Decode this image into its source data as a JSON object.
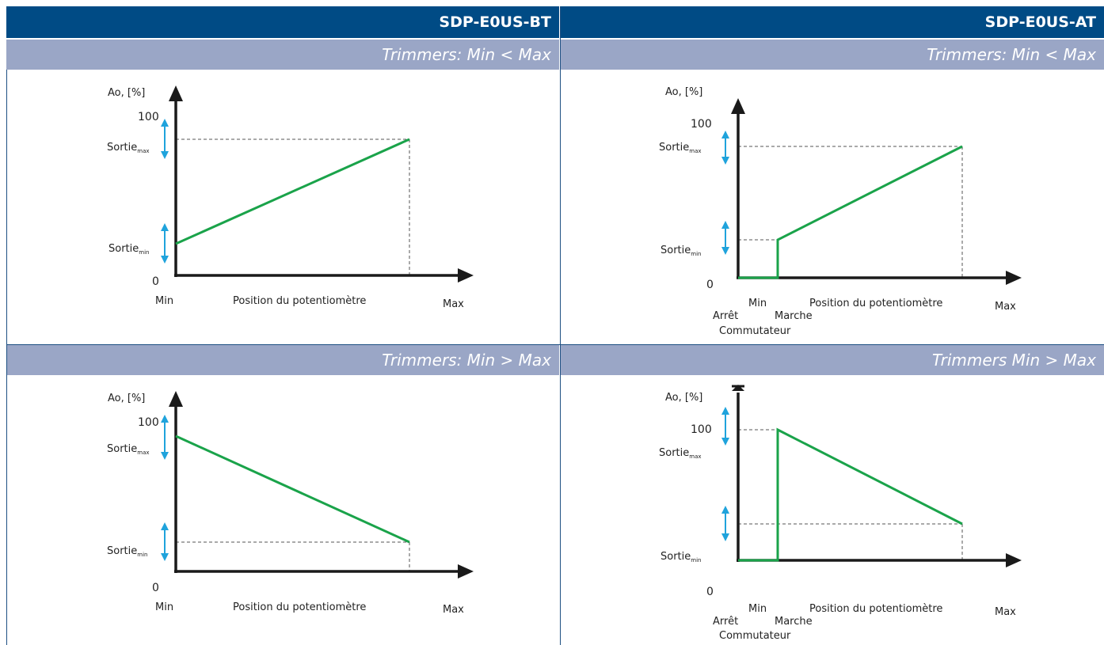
{
  "columns": [
    {
      "title": "SDP-E0US-BT"
    },
    {
      "title": "SDP-E0US-AT"
    }
  ],
  "rows": [
    {
      "subtitles": [
        "Trimmers: Min < Max",
        "Trimmers: Min < Max"
      ]
    },
    {
      "subtitles": [
        "Trimmers: Min > Max",
        "Trimmers Min > Max"
      ]
    }
  ],
  "graph_labels": {
    "y_axis": "Ao, [%]",
    "y_100": "100",
    "y_0": "0",
    "sortie": "Sortie",
    "sub_max": "max",
    "sub_min": "min",
    "x_min": "Min",
    "x_max": "Max",
    "x_position": "Position du potentiomètre",
    "arret": "Arrêt",
    "marche": "Marche",
    "commutateur": "Commutateur"
  },
  "colors": {
    "header": "#004b85",
    "subheader": "#9aa6c6",
    "curve": "#1aa34a",
    "arrow": "#1fa3dc",
    "axis": "#1a1a1a"
  }
}
